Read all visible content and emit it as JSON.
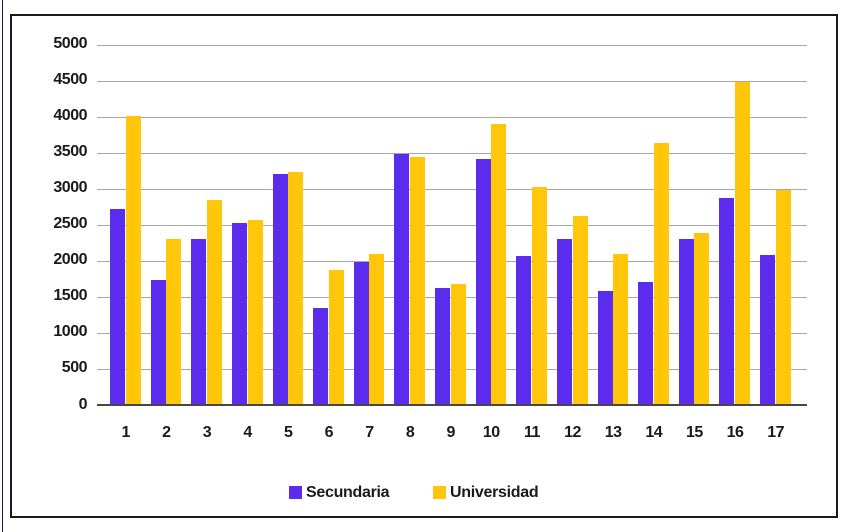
{
  "chart_data": {
    "type": "bar",
    "title": "",
    "categories": [
      "1",
      "2",
      "3",
      "4",
      "5",
      "6",
      "7",
      "8",
      "9",
      "10",
      "11",
      "12",
      "13",
      "14",
      "15",
      "16",
      "17"
    ],
    "series": [
      {
        "name": "Secundaria",
        "color": "#5B2BEE",
        "values": [
          2720,
          1740,
          2310,
          2520,
          3200,
          1350,
          1990,
          3490,
          1630,
          3420,
          2070,
          2310,
          1580,
          1700,
          2310,
          2870,
          2080
        ]
      },
      {
        "name": "Universidad",
        "color": "#FFC60A",
        "values": [
          4010,
          2310,
          2850,
          2570,
          3230,
          1870,
          2100,
          3440,
          1680,
          3900,
          3030,
          2620,
          2100,
          3630,
          2380,
          4480,
          2980
        ]
      }
    ],
    "xlabel": "",
    "ylabel": "",
    "ylim": [
      0,
      5000
    ],
    "y_ticks": [
      0,
      500,
      1000,
      1500,
      2000,
      2500,
      3000,
      3500,
      4000,
      4500,
      5000
    ],
    "grid": true,
    "legend_position": "bottom"
  },
  "colors": {
    "gridline": "#a7a7a7",
    "baseline": "#474747",
    "frame_border": "#1a1a1a",
    "text": "#1a1a1a",
    "background": "#ffffff"
  }
}
